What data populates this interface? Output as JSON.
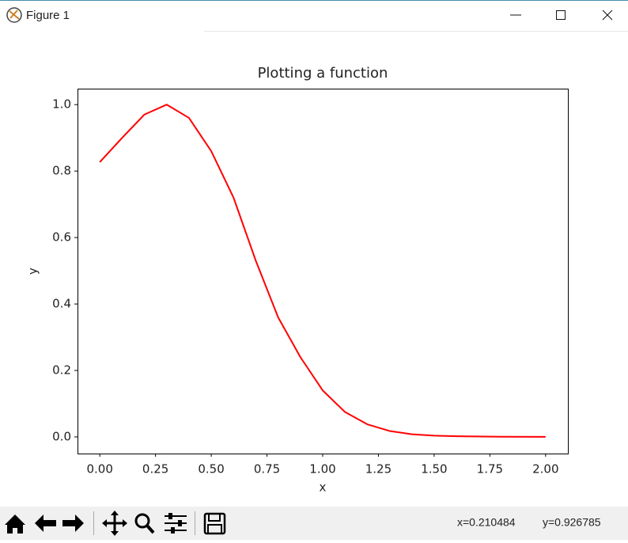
{
  "window": {
    "title": "Figure 1",
    "status_x": "x=0.210484",
    "status_y": "y=0.926785"
  },
  "chart_data": {
    "type": "line",
    "title": "Plotting a function",
    "xlabel": "x",
    "ylabel": "y",
    "color": "#ff0000",
    "x": [
      0,
      0.1,
      0.2,
      0.3,
      0.4,
      0.5,
      0.6,
      0.7,
      0.8,
      0.9,
      1.0,
      1.1,
      1.2,
      1.3,
      1.4,
      1.5,
      1.6,
      1.8,
      2.0
    ],
    "values": [
      0.827,
      0.9,
      0.97,
      1.0,
      0.96,
      0.86,
      0.72,
      0.53,
      0.36,
      0.24,
      0.14,
      0.075,
      0.038,
      0.018,
      0.008,
      0.004,
      0.002,
      0.0005,
      0.0003
    ],
    "xlim": [
      -0.1,
      2.1
    ],
    "ylim": [
      -0.05,
      1.048
    ],
    "xticks": [
      {
        "value": 0,
        "label": "0.00"
      },
      {
        "value": 0.25,
        "label": "0.25"
      },
      {
        "value": 0.5,
        "label": "0.50"
      },
      {
        "value": 0.75,
        "label": "0.75"
      },
      {
        "value": 1,
        "label": "1.00"
      },
      {
        "value": 1.25,
        "label": "1.25"
      },
      {
        "value": 1.5,
        "label": "1.50"
      },
      {
        "value": 1.75,
        "label": "1.75"
      },
      {
        "value": 2,
        "label": "2.00"
      }
    ],
    "yticks": [
      {
        "value": 0,
        "label": "0.0"
      },
      {
        "value": 0.2,
        "label": "0.2"
      },
      {
        "value": 0.4,
        "label": "0.4"
      },
      {
        "value": 0.6,
        "label": "0.6"
      },
      {
        "value": 0.8,
        "label": "0.8"
      },
      {
        "value": 1,
        "label": "1.0"
      }
    ]
  }
}
